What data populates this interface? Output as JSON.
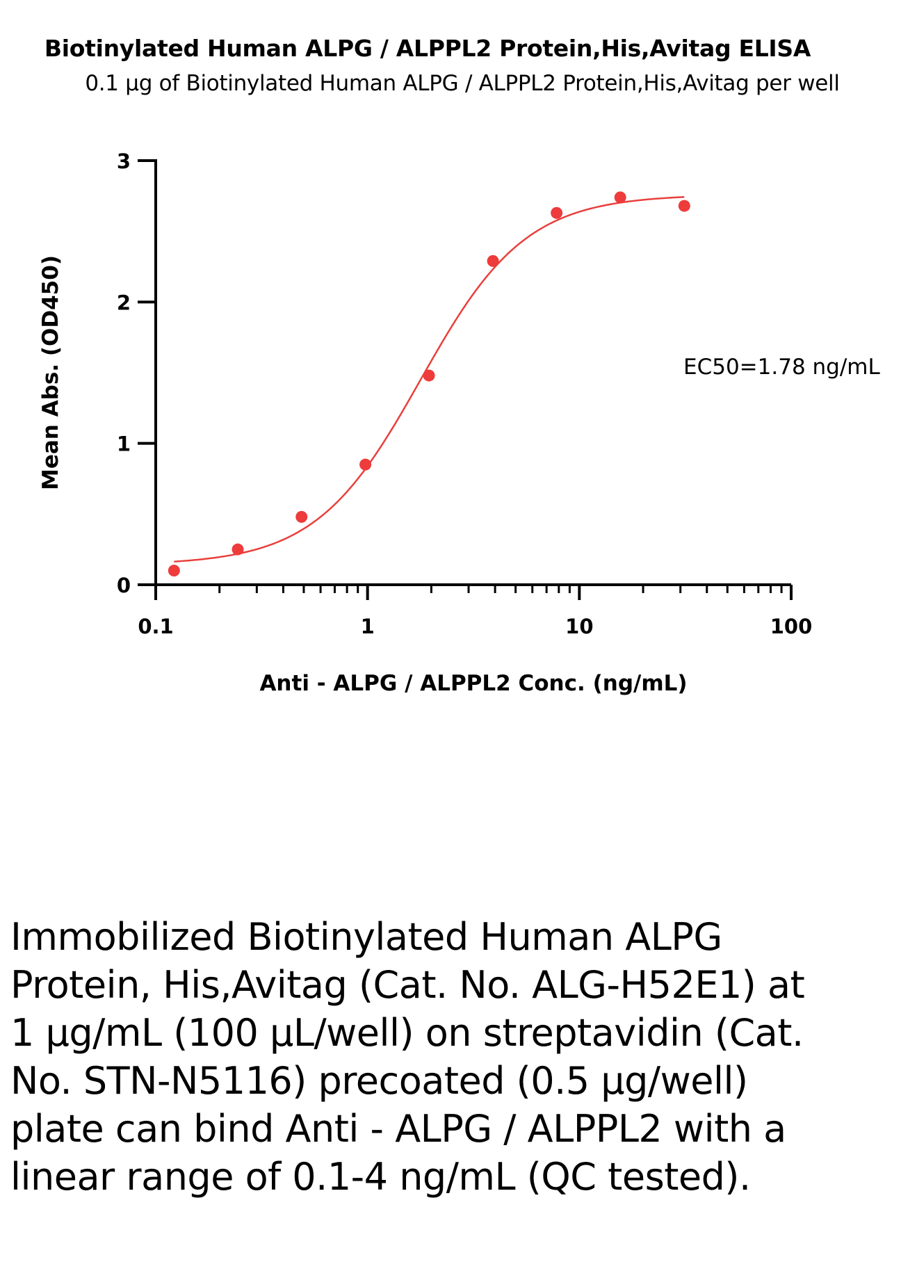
{
  "chart_data": {
    "type": "scatter",
    "title": "Biotinylated Human ALPG / ALPPL2 Protein,His,Avitag ELISA",
    "subtitle": "0.1 µg of Biotinylated Human ALPG / ALPPL2 Protein,His,Avitag per well",
    "xlabel": "Anti - ALPG / ALPPL2 Conc. (ng/mL)",
    "ylabel": "Mean Abs. (OD450)",
    "x_scale": "log",
    "xlim": [
      0.1,
      100
    ],
    "ylim": [
      0,
      3
    ],
    "x_ticks": [
      {
        "value": 0.1,
        "label": "0.1"
      },
      {
        "value": 1,
        "label": "1"
      },
      {
        "value": 10,
        "label": "10"
      },
      {
        "value": 100,
        "label": "100"
      }
    ],
    "y_ticks": [
      {
        "value": 0,
        "label": "0"
      },
      {
        "value": 1,
        "label": "1"
      },
      {
        "value": 2,
        "label": "2"
      },
      {
        "value": 3,
        "label": "3"
      }
    ],
    "grid": false,
    "series": [
      {
        "marker_color": "#EE3B3B",
        "points": [
          {
            "x": 0.122,
            "y": 0.1
          },
          {
            "x": 0.244,
            "y": 0.25
          },
          {
            "x": 0.488,
            "y": 0.48
          },
          {
            "x": 0.977,
            "y": 0.85
          },
          {
            "x": 1.95,
            "y": 1.48
          },
          {
            "x": 3.91,
            "y": 2.29
          },
          {
            "x": 7.81,
            "y": 2.63
          },
          {
            "x": 15.6,
            "y": 2.74
          },
          {
            "x": 31.3,
            "y": 2.68
          }
        ]
      }
    ],
    "fit_curve": {
      "model": "4PL",
      "color": "#E8403C",
      "bottom": 0.14,
      "top": 2.76,
      "ec50": 1.78,
      "hill": 1.75,
      "x_range": [
        0.122,
        31.3
      ]
    },
    "annotation": "EC50=1.78 ng/mL"
  },
  "description": "Immobilized Biotinylated Human ALPG Protein, His,Avitag (Cat. No. ALG-H52E1) at 1 µg/mL (100 µL/well) on streptavidin (Cat. No. STN-N5116) precoated (0.5 µg/well) plate can bind Anti - ALPG / ALPPL2 with a linear range of 0.1-4 ng/mL (QC tested)."
}
